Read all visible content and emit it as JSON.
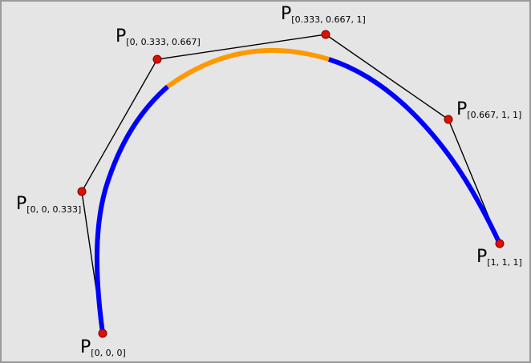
{
  "diagram": {
    "curve_colors": {
      "outer_segments": "#0000ff",
      "middle_segment": "#ff9900"
    },
    "point_fill": "#dd1100",
    "point_stroke": "#7a0000",
    "polygon_color": "#000000",
    "background": "#e5e5e5",
    "points": [
      {
        "letter": "P",
        "index": "[0, 0, 0]"
      },
      {
        "letter": "P",
        "index": "[0, 0, 0.333]"
      },
      {
        "letter": "P",
        "index": "[0, 0.333, 0.667]"
      },
      {
        "letter": "P",
        "index": "[0.333, 0.667, 1]"
      },
      {
        "letter": "P",
        "index": "[0.667, 1, 1]"
      },
      {
        "letter": "P",
        "index": "[1, 1, 1]"
      }
    ]
  }
}
